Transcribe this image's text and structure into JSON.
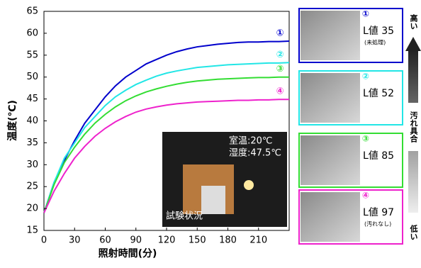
{
  "chart_data": {
    "type": "line",
    "x_label": "照射時間(分)",
    "y_label": "温度(℃)",
    "x": [
      0,
      10,
      20,
      30,
      40,
      50,
      60,
      70,
      80,
      90,
      100,
      110,
      120,
      130,
      140,
      150,
      160,
      170,
      180,
      190,
      200,
      210,
      220,
      230,
      240
    ],
    "series": [
      {
        "name": "①",
        "color": "#0000cc",
        "values": [
          19,
          26,
          31,
          35.5,
          39.5,
          42.5,
          45.5,
          48,
          50,
          51.5,
          53,
          54,
          55,
          55.8,
          56.4,
          56.9,
          57.2,
          57.5,
          57.7,
          57.9,
          58,
          58,
          58.1,
          58.1,
          58.2
        ]
      },
      {
        "name": "②",
        "color": "#22e6e6",
        "values": [
          19,
          26,
          31.5,
          35,
          38.5,
          41,
          43.5,
          45.5,
          47,
          48.3,
          49.3,
          50.2,
          50.9,
          51.4,
          51.8,
          52.2,
          52.4,
          52.6,
          52.8,
          52.9,
          53,
          53.1,
          53.2,
          53.2,
          53.3
        ]
      },
      {
        "name": "③",
        "color": "#33dd33",
        "values": [
          19,
          25.5,
          30.5,
          34,
          37,
          39.5,
          41.5,
          43.2,
          44.6,
          45.7,
          46.6,
          47.3,
          47.9,
          48.4,
          48.8,
          49.1,
          49.3,
          49.5,
          49.6,
          49.7,
          49.8,
          49.9,
          49.9,
          50,
          50
        ]
      },
      {
        "name": "④",
        "color": "#ee22cc",
        "values": [
          19,
          24,
          28,
          31.5,
          34.2,
          36.5,
          38.3,
          39.8,
          41,
          42,
          42.7,
          43.2,
          43.6,
          43.9,
          44.1,
          44.3,
          44.4,
          44.5,
          44.6,
          44.7,
          44.7,
          44.8,
          44.8,
          44.9,
          44.9
        ]
      }
    ],
    "xlim": [
      0,
      240
    ],
    "xticks": [
      0,
      30,
      60,
      90,
      120,
      150,
      180,
      210
    ],
    "ylim": [
      15,
      65
    ],
    "yticks": [
      15,
      20,
      25,
      30,
      35,
      40,
      45,
      50,
      55,
      60,
      65
    ]
  },
  "photo_inset": {
    "room_temp": "室温:20℃",
    "humidity": "湿度:47.5℃",
    "caption": "試験状況"
  },
  "samples": [
    {
      "marker": "①",
      "label": "L値 35",
      "note": "(未処理)"
    },
    {
      "marker": "②",
      "label": "L値 52"
    },
    {
      "marker": "③",
      "label": "L値 85"
    },
    {
      "marker": "④",
      "label": "L値 97",
      "note": "(汚れなし)"
    }
  ],
  "scale": {
    "top": "高い",
    "middle": "汚れ具合",
    "bottom": "低い"
  }
}
